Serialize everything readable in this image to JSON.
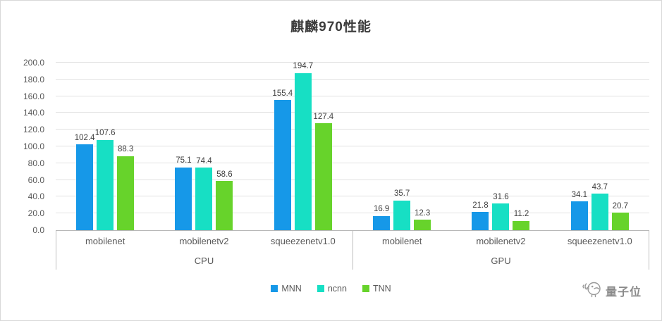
{
  "logo": {
    "text": "量子位"
  },
  "chart_data": {
    "type": "bar",
    "title": "麒麟970性能",
    "groups": [
      {
        "label": "CPU",
        "categories": [
          "mobilenet",
          "mobilenetv2",
          "squeezenetv1.0"
        ]
      },
      {
        "label": "GPU",
        "categories": [
          "mobilenet",
          "mobilenetv2",
          "squeezenetv1.0"
        ]
      }
    ],
    "categories": [
      "mobilenet",
      "mobilenetv2",
      "squeezenetv1.0",
      "mobilenet",
      "mobilenetv2",
      "squeezenetv1.0"
    ],
    "series": [
      {
        "name": "MNN",
        "color": "#1698e8",
        "values": [
          102.4,
          75.1,
          155.4,
          16.9,
          21.8,
          34.1
        ]
      },
      {
        "name": "ncnn",
        "color": "#17dfc4",
        "values": [
          107.6,
          74.4,
          194.7,
          35.7,
          31.6,
          43.7
        ]
      },
      {
        "name": "TNN",
        "color": "#67d32b",
        "values": [
          88.3,
          58.6,
          127.4,
          12.3,
          11.2,
          20.7
        ]
      }
    ],
    "ylim": [
      0,
      200
    ],
    "ytick_step": 20,
    "ytick_labels": [
      "0.0",
      "20.0",
      "40.0",
      "60.0",
      "80.0",
      "100.0",
      "120.0",
      "140.0",
      "160.0",
      "180.0",
      "200.0"
    ],
    "grid": true,
    "legend_position": "bottom"
  }
}
